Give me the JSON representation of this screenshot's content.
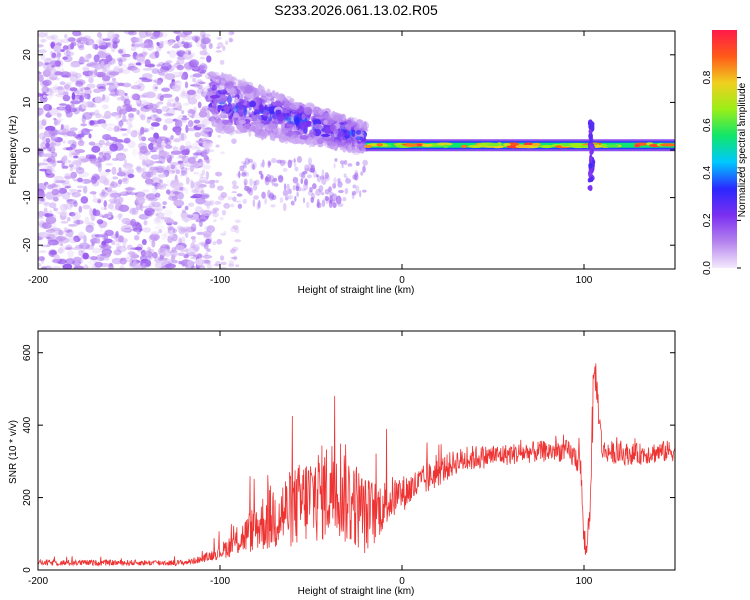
{
  "title": "S233.2026.061.13.02.R05",
  "chart_data": [
    {
      "type": "heatmap",
      "xlabel": "Height of straight line (km)",
      "ylabel": "Frequency (Hz)",
      "xlim": [
        -200,
        150
      ],
      "ylim": [
        -25,
        25
      ],
      "x_ticks": [
        -200,
        -100,
        0,
        100
      ],
      "y_ticks": [
        -20,
        -10,
        0,
        10,
        20
      ],
      "colorbar": {
        "label": "Normalized spectral amplitude",
        "range": [
          0,
          1
        ],
        "ticks": [
          0.0,
          0.2,
          0.4,
          0.6,
          0.8
        ],
        "tick_labels": [
          "0.0",
          "0.2",
          "0.4",
          "0.6",
          "0.8"
        ],
        "colors": [
          "#f4eafc",
          "#b482ee",
          "#7a2ff0",
          "#2a28ff",
          "#00c8ff",
          "#10e66a",
          "#9aee18",
          "#f0d020",
          "#ff5a18",
          "#ff1a4a"
        ]
      },
      "regions": [
        {
          "x": [
            -200,
            -105
          ],
          "freq_range": [
            -25,
            25
          ],
          "amplitude": 0.05,
          "description": "diffuse noise"
        },
        {
          "x": [
            -105,
            -20
          ],
          "freq_center": [
            8,
            0
          ],
          "amplitude": 0.3
        },
        {
          "x": [
            -20,
            150
          ],
          "freq_center": 1,
          "amplitude": 0.9
        },
        {
          "x": [
            103,
            105
          ],
          "freq_range": [
            -8,
            6
          ],
          "amplitude": 0.2
        }
      ]
    },
    {
      "type": "line",
      "xlabel": "Height of straight line (km)",
      "ylabel": "SNR (10 * v/v)",
      "xlim": [
        -200,
        150
      ],
      "ylim": [
        0,
        660
      ],
      "x_ticks": [
        -200,
        -100,
        0,
        100
      ],
      "y_ticks": [
        0,
        200,
        400,
        600
      ],
      "color": "#ee3333",
      "series": [
        {
          "name": "SNR",
          "x": [
            -200,
            -120,
            -110,
            -100,
            -90,
            -80,
            -70,
            -60,
            -50,
            -40,
            -35,
            -30,
            -25,
            -20,
            -15,
            -10,
            -5,
            0,
            10,
            20,
            30,
            40,
            50,
            60,
            70,
            80,
            90,
            98,
            100,
            101,
            103,
            105,
            106,
            110,
            120,
            130,
            140,
            150
          ],
          "y": [
            20,
            20,
            30,
            50,
            80,
            120,
            150,
            170,
            200,
            220,
            240,
            200,
            180,
            150,
            160,
            180,
            200,
            210,
            240,
            270,
            300,
            310,
            315,
            320,
            325,
            328,
            330,
            300,
            80,
            40,
            150,
            460,
            560,
            330,
            320,
            320,
            325,
            330
          ],
          "amplitude": [
            8,
            8,
            10,
            20,
            40,
            70,
            100,
            110,
            130,
            140,
            150,
            140,
            120,
            110,
            90,
            70,
            60,
            50,
            45,
            40,
            35,
            35,
            30,
            30,
            30,
            30,
            30,
            40,
            40,
            15,
            60,
            80,
            60,
            30,
            30,
            30,
            30,
            30
          ]
        }
      ]
    }
  ]
}
